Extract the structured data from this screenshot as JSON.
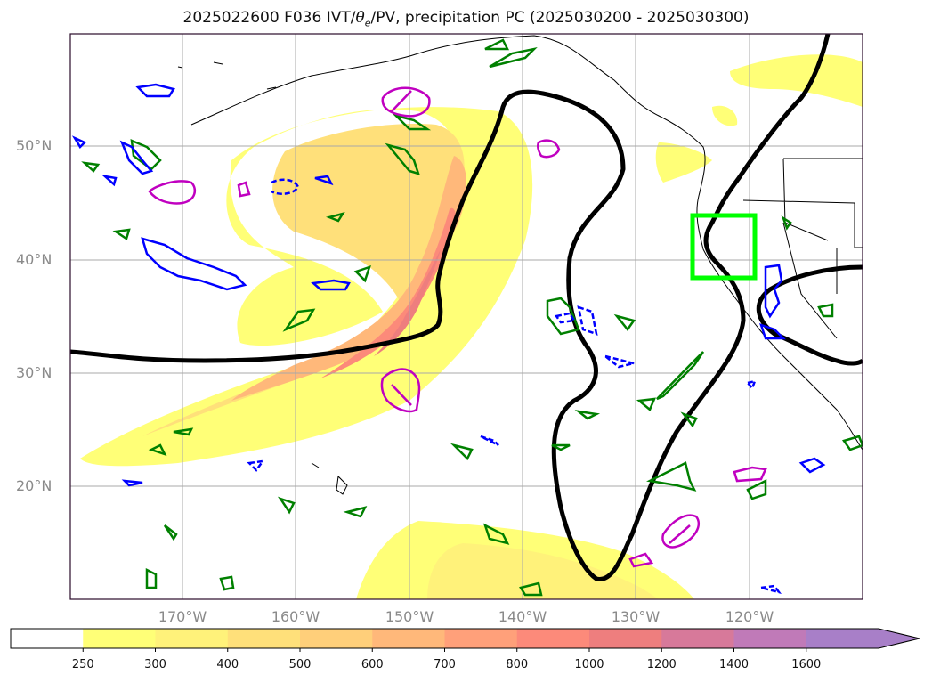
{
  "title": {
    "prefix": "2025022600 F036 IVT/",
    "theta": "θ",
    "theta_sub": "e",
    "suffix": "/PV, precipitation PC (2025030200 - 2025030300)"
  },
  "lat_labels": [
    "50°N",
    "40°N",
    "30°N",
    "20°N"
  ],
  "lon_labels": [
    "170°W",
    "160°W",
    "150°W",
    "140°W",
    "130°W",
    "120°W"
  ],
  "colorbar": {
    "labels": [
      "250",
      "300",
      "400",
      "500",
      "600",
      "700",
      "800",
      "1000",
      "1200",
      "1400",
      "1600"
    ],
    "colors": [
      "#ffff77",
      "#fff27a",
      "#ffe07a",
      "#ffcf7a",
      "#ffb87a",
      "#ffa07a",
      "#fc8a7a",
      "#ee7e7e",
      "#d7799a",
      "#c07ab8",
      "#a87fc8"
    ],
    "extend": "max"
  },
  "colors": {
    "pv_contour": "#000000",
    "precip_positive": "#008000",
    "precip_negative": "#0000ff",
    "theta_contour": "#c000c0",
    "target_box": "#00ff00"
  }
}
